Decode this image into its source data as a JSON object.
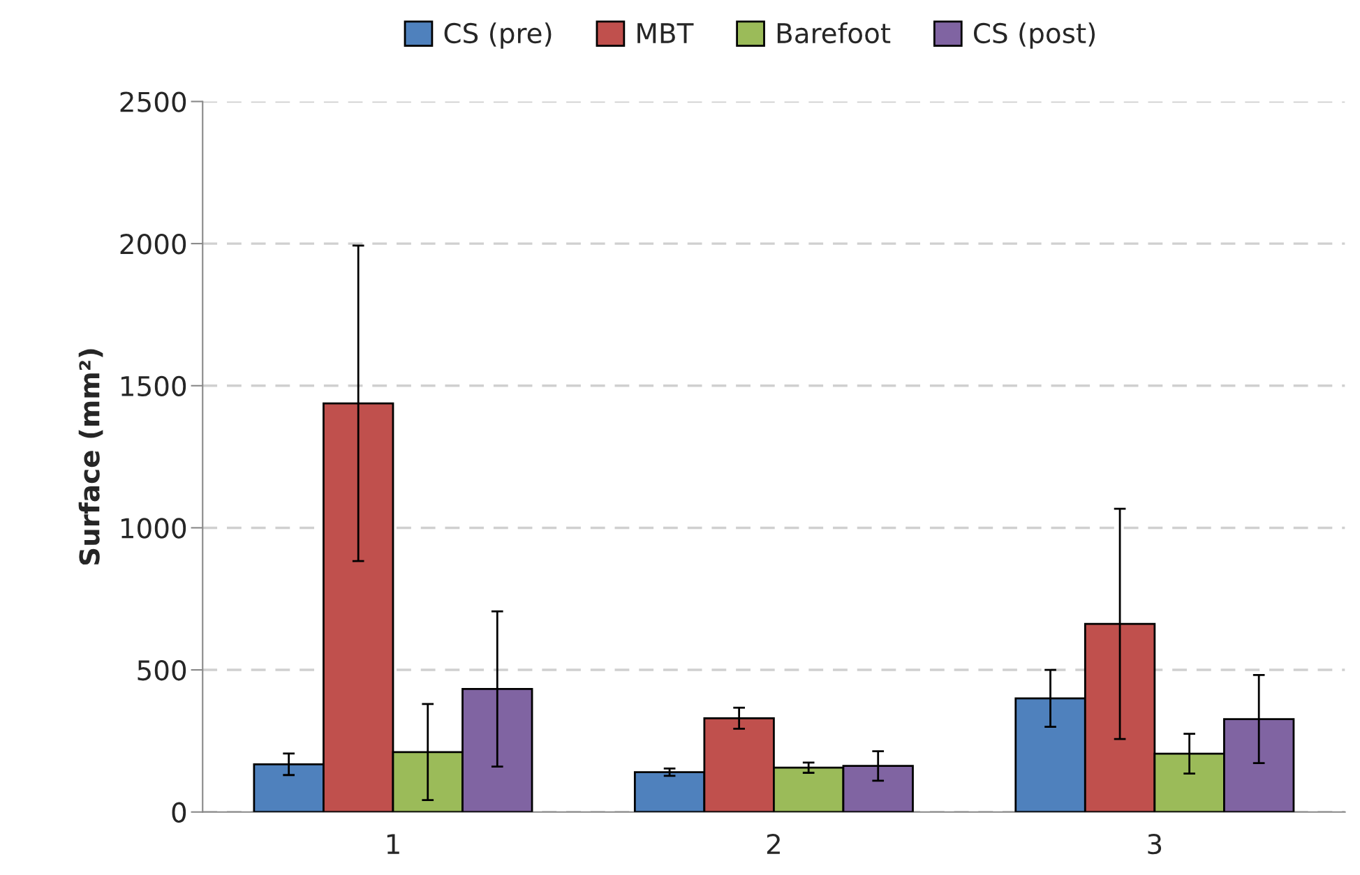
{
  "chart_data": {
    "type": "bar",
    "ylabel": "Surface (mm²)",
    "categories": [
      "1",
      "2",
      "3"
    ],
    "series": [
      {
        "name": "CS (pre)",
        "color": "#4f81bd",
        "values": [
          168,
          140,
          400
        ],
        "errors": [
          38,
          13,
          100
        ]
      },
      {
        "name": "MBT",
        "color": "#c0504d",
        "values": [
          1438,
          330,
          662
        ],
        "errors": [
          555,
          37,
          405
        ]
      },
      {
        "name": "Barefoot",
        "color": "#9bbb59",
        "values": [
          211,
          156,
          205
        ],
        "errors": [
          169,
          18,
          70
        ]
      },
      {
        "name": "CS (post)",
        "color": "#8064a2",
        "values": [
          433,
          162,
          327
        ],
        "errors": [
          273,
          52,
          155
        ]
      }
    ],
    "ylim": [
      0,
      2500
    ],
    "yticks": [
      0,
      500,
      1000,
      1500,
      2000,
      2500
    ],
    "grid": "y",
    "legend": "top"
  }
}
